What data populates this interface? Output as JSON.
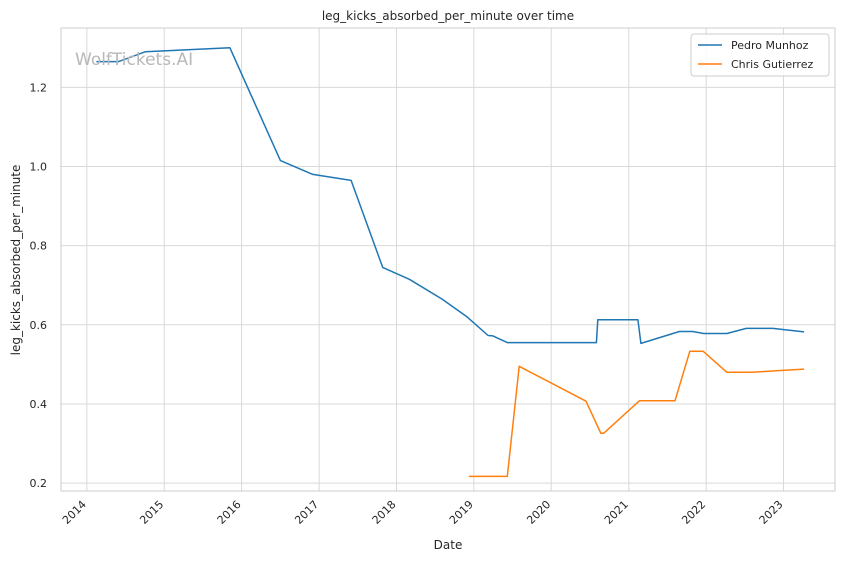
{
  "watermark": "WolfTickets.AI",
  "colors": {
    "pedro": "#1f77b4",
    "chris": "#ff7f0e",
    "grid": "#d9d9d9",
    "frame": "#cccccc"
  },
  "chart_data": {
    "type": "line",
    "title": "leg_kicks_absorbed_per_minute over time",
    "xlabel": "Date",
    "ylabel": "leg_kicks_absorbed_per_minute",
    "xlim": [
      "2013-09-01",
      "2023-09-01"
    ],
    "ylim": [
      0.18,
      1.35
    ],
    "x_ticks": [
      "2014",
      "2015",
      "2016",
      "2017",
      "2018",
      "2019",
      "2020",
      "2021",
      "2022",
      "2023"
    ],
    "y_ticks": [
      "0.2",
      "0.4",
      "0.6",
      "0.8",
      "1.0",
      "1.2"
    ],
    "grid": true,
    "legend_position": "top-right",
    "series": [
      {
        "name": "Pedro Munhoz",
        "color": "#1f77b4",
        "points": [
          [
            "2014-02-15",
            1.265
          ],
          [
            "2014-05-31",
            1.265
          ],
          [
            "2014-10-04",
            1.29
          ],
          [
            "2015-11-07",
            1.3
          ],
          [
            "2016-07-02",
            1.015
          ],
          [
            "2016-12-02",
            0.98
          ],
          [
            "2017-06-01",
            0.965
          ],
          [
            "2017-10-28",
            0.745
          ],
          [
            "2018-03-03",
            0.715
          ],
          [
            "2018-08-04",
            0.665
          ],
          [
            "2018-11-30",
            0.62
          ],
          [
            "2019-03-09",
            0.573
          ],
          [
            "2019-04-01",
            0.572
          ],
          [
            "2019-06-08",
            0.555
          ],
          [
            "2020-08-01",
            0.555
          ],
          [
            "2020-08-08",
            0.613
          ],
          [
            "2021-02-13",
            0.613
          ],
          [
            "2021-02-27",
            0.553
          ],
          [
            "2021-08-28",
            0.583
          ],
          [
            "2021-10-30",
            0.583
          ],
          [
            "2021-12-20",
            0.578
          ],
          [
            "2022-04-09",
            0.578
          ],
          [
            "2022-07-09",
            0.591
          ],
          [
            "2022-11-12",
            0.591
          ],
          [
            "2023-04-08",
            0.582
          ]
        ]
      },
      {
        "name": "Chris Gutierrez",
        "color": "#ff7f0e",
        "points": [
          [
            "2018-12-08",
            0.217
          ],
          [
            "2019-06-08",
            0.217
          ],
          [
            "2019-08-03",
            0.495
          ],
          [
            "2020-06-13",
            0.407
          ],
          [
            "2020-08-22",
            0.326
          ],
          [
            "2020-09-05",
            0.326
          ],
          [
            "2021-02-20",
            0.408
          ],
          [
            "2021-08-07",
            0.408
          ],
          [
            "2021-10-16",
            0.533
          ],
          [
            "2021-12-18",
            0.533
          ],
          [
            "2022-04-09",
            0.48
          ],
          [
            "2022-08-01",
            0.48
          ],
          [
            "2023-04-08",
            0.488
          ]
        ]
      }
    ]
  }
}
